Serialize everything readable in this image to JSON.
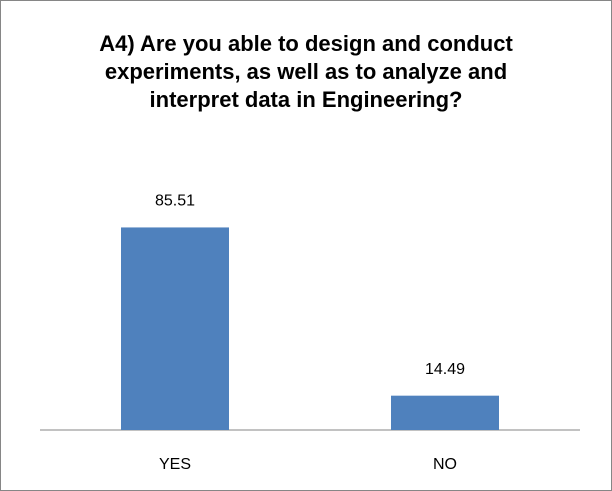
{
  "chart_data": {
    "type": "bar",
    "title": "A4) Are you able to design and conduct experiments, as well as to analyze and interpret data in Engineering?",
    "categories": [
      "YES",
      "NO"
    ],
    "values": [
      85.51,
      14.49
    ],
    "color": "#4f81bd"
  }
}
